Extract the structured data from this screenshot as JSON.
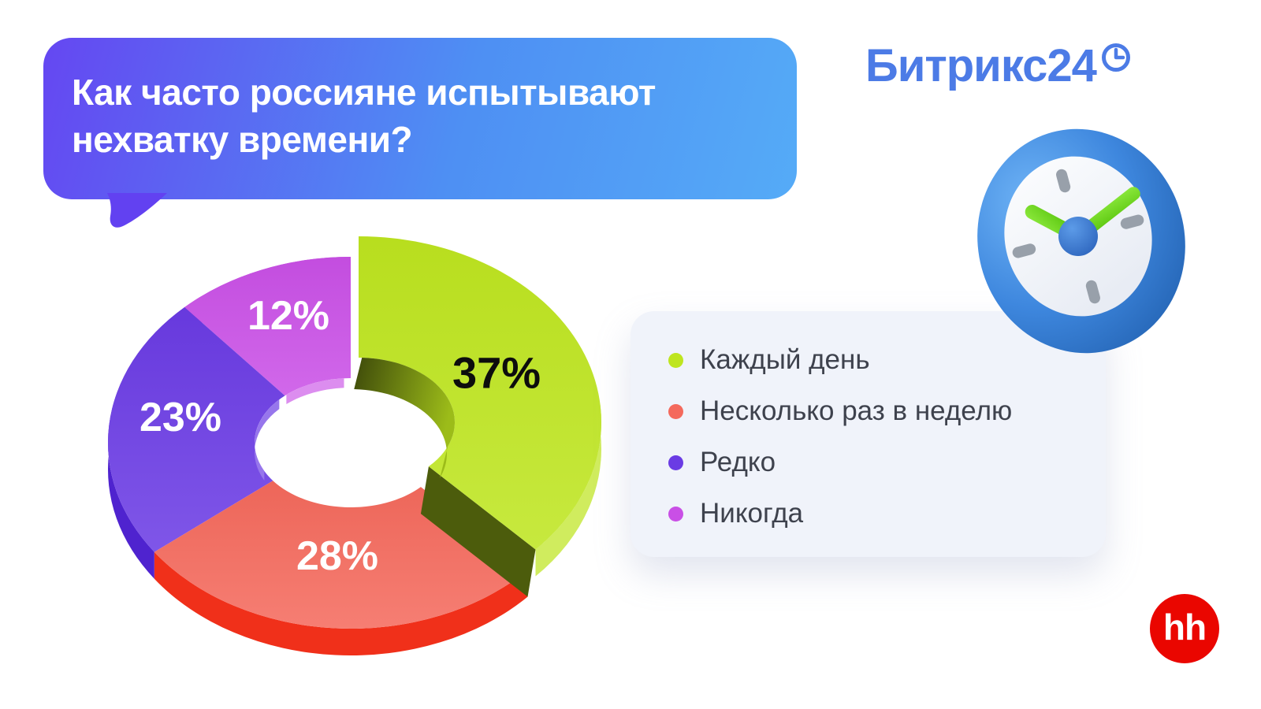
{
  "header": {
    "title": "Как часто россияне испытывают нехватку времени?"
  },
  "brand": {
    "name": "Битрикс24",
    "logo_color": "#4C7BE6",
    "clock_glyph": "clock-icon"
  },
  "chart_data": {
    "type": "pie",
    "donut": true,
    "title": "Как часто россияне испытывают нехватку времени?",
    "start_angle_deg": 0,
    "direction": "clockwise",
    "legend_position": "right",
    "slices": [
      {
        "label": "Каждый день",
        "value": 37,
        "pct": "37%",
        "color": "#BEE51F"
      },
      {
        "label": "Несколько раз в неделю",
        "value": 28,
        "pct": "28%",
        "color": "#F4695C"
      },
      {
        "label": "Редко",
        "value": 23,
        "pct": "23%",
        "color": "#6A3BE4"
      },
      {
        "label": "Никогда",
        "value": 12,
        "pct": "12%",
        "color": "#C94FE6"
      }
    ]
  },
  "source": {
    "logo_text": "hh",
    "color": "#EA0600"
  }
}
